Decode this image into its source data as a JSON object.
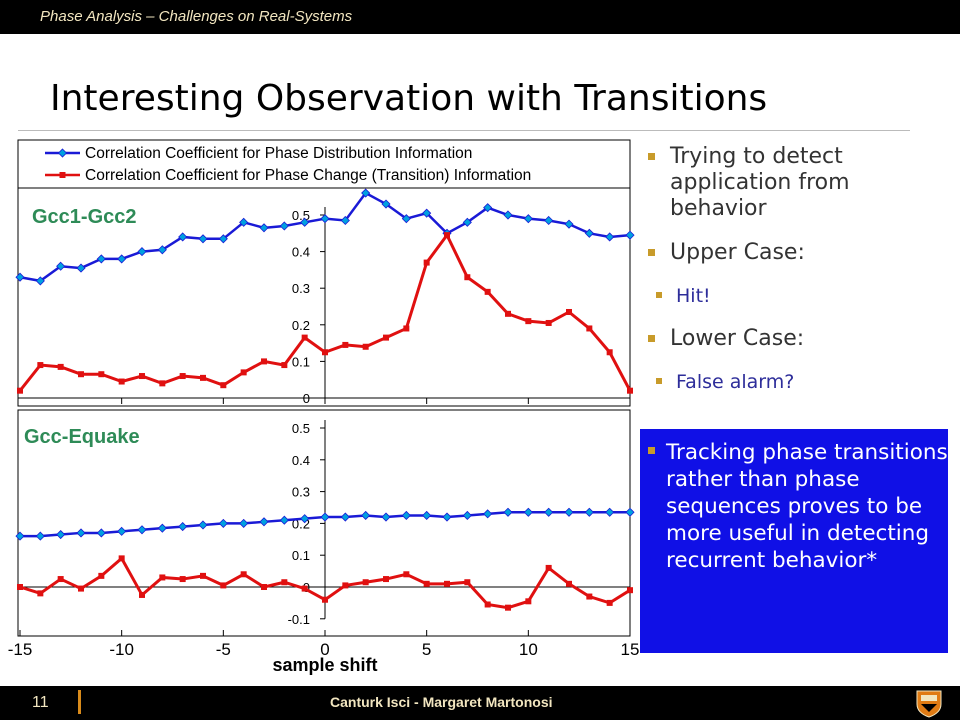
{
  "header": {
    "title": "Phase Analysis – Challenges on Real-Systems"
  },
  "slide": {
    "title": "Interesting Observation with Transitions"
  },
  "bullets": [
    {
      "level": 1,
      "text": "Trying to detect application from behavior"
    },
    {
      "level": 1,
      "text": "Upper Case:"
    },
    {
      "level": 2,
      "text": "Hit!"
    },
    {
      "level": 1,
      "text": "Lower Case:"
    },
    {
      "level": 2,
      "text": "False alarm?"
    }
  ],
  "highlight": {
    "text": "Tracking phase transitions rather than phase sequences proves to be more useful in detecting recurrent behavior*"
  },
  "footer": {
    "page": "11",
    "authors": "Canturk Isci - Margaret Martonosi"
  },
  "colors": {
    "blue_series": "#1a1ad6",
    "red_series": "#e01010",
    "label_green": "#2e8b57",
    "highlight_box": "#1010e6",
    "accent": "#c89b2a"
  },
  "chart_data": [
    {
      "type": "line",
      "label": "Gcc1-Gcc2",
      "x": [
        -15,
        -14,
        -13,
        -12,
        -11,
        -10,
        -9,
        -8,
        -7,
        -6,
        -5,
        -4,
        -3,
        -2,
        -1,
        0,
        1,
        2,
        3,
        4,
        5,
        6,
        7,
        8,
        9,
        10,
        11,
        12,
        13,
        14,
        15
      ],
      "ylim": [
        0,
        0.55
      ],
      "yticks": [
        0,
        0.1,
        0.2,
        0.3,
        0.4,
        0.5
      ],
      "ytick_labels": [
        "0",
        "0.1",
        "0.2",
        "0.3",
        "0.4",
        "0.5"
      ],
      "legend": "top",
      "series": [
        {
          "name": "Correlation Coefficient for Phase Distribution Information",
          "values": [
            0.33,
            0.32,
            0.36,
            0.355,
            0.38,
            0.38,
            0.4,
            0.405,
            0.44,
            0.435,
            0.435,
            0.48,
            0.465,
            0.47,
            0.48,
            0.49,
            0.485,
            0.56,
            0.53,
            0.49,
            0.505,
            0.45,
            0.48,
            0.52,
            0.5,
            0.49,
            0.485,
            0.475,
            0.45,
            0.44,
            0.445
          ]
        },
        {
          "name": "Correlation Coefficient for Phase Change (Transition) Information",
          "values": [
            0.02,
            0.09,
            0.085,
            0.065,
            0.065,
            0.045,
            0.06,
            0.04,
            0.06,
            0.055,
            0.035,
            0.07,
            0.1,
            0.09,
            0.165,
            0.125,
            0.145,
            0.14,
            0.165,
            0.19,
            0.37,
            0.445,
            0.33,
            0.29,
            0.23,
            0.21,
            0.205,
            0.235,
            0.19,
            0.125,
            0.02
          ]
        }
      ]
    },
    {
      "type": "line",
      "label": "Gcc-Equake",
      "x": [
        -15,
        -14,
        -13,
        -12,
        -11,
        -10,
        -9,
        -8,
        -7,
        -6,
        -5,
        -4,
        -3,
        -2,
        -1,
        0,
        1,
        2,
        3,
        4,
        5,
        6,
        7,
        8,
        9,
        10,
        11,
        12,
        13,
        14,
        15
      ],
      "ylim": [
        -0.1,
        0.55
      ],
      "yticks": [
        -0.1,
        0,
        0.1,
        0.2,
        0.3,
        0.4,
        0.5
      ],
      "ytick_labels": [
        "-0.1",
        "0",
        "0.1",
        "0.2",
        "0.3",
        "0.4",
        "0.5"
      ],
      "xticks": [
        -15,
        -10,
        -5,
        0,
        5,
        10,
        15
      ],
      "xtick_labels": [
        "-15",
        "-10",
        "-5",
        "0",
        "5",
        "10",
        "15"
      ],
      "xlabel": "sample shift",
      "series": [
        {
          "name": "Correlation Coefficient for Phase Distribution Information",
          "values": [
            0.16,
            0.16,
            0.165,
            0.17,
            0.17,
            0.175,
            0.18,
            0.185,
            0.19,
            0.195,
            0.2,
            0.2,
            0.205,
            0.21,
            0.215,
            0.22,
            0.22,
            0.225,
            0.22,
            0.225,
            0.225,
            0.22,
            0.225,
            0.23,
            0.235,
            0.235,
            0.235,
            0.235,
            0.235,
            0.235,
            0.235
          ]
        },
        {
          "name": "Correlation Coefficient for Phase Change (Transition) Information",
          "values": [
            0.0,
            -0.02,
            0.025,
            -0.005,
            0.035,
            0.09,
            -0.025,
            0.03,
            0.025,
            0.035,
            0.005,
            0.04,
            0.0,
            0.015,
            -0.005,
            -0.04,
            0.005,
            0.015,
            0.025,
            0.04,
            0.01,
            0.01,
            0.015,
            -0.055,
            -0.065,
            -0.045,
            0.06,
            0.01,
            -0.03,
            -0.05,
            -0.01
          ]
        }
      ]
    }
  ]
}
